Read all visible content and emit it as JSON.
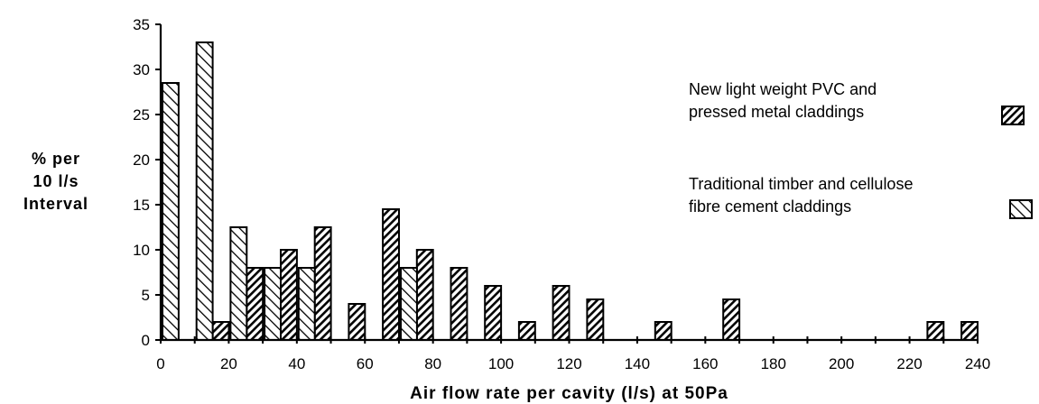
{
  "chart_data": {
    "type": "bar",
    "xlabel": "Air flow rate per cavity (l/s) at 50Pa",
    "ylabel_lines": [
      "% per",
      "10 l/s",
      "Interval"
    ],
    "xlim": [
      0,
      240
    ],
    "ylim": [
      0,
      35
    ],
    "x_ticks": [
      "0",
      "20",
      "40",
      "60",
      "80",
      "100",
      "120",
      "140",
      "160",
      "180",
      "200",
      "220",
      "240"
    ],
    "y_ticks": [
      "0",
      "5",
      "10",
      "15",
      "20",
      "25",
      "30",
      "35"
    ],
    "bin_width": 10,
    "grid": false,
    "legend_position": "right",
    "series": [
      {
        "name_lines": [
          "New light weight PVC  and",
          "pressed metal claddings"
        ],
        "hatch": "forward-diagonal-dense",
        "bins": [
          0,
          10,
          20,
          30,
          40,
          50,
          60,
          70,
          80,
          90,
          100,
          110,
          120,
          140,
          160,
          220,
          230
        ],
        "values": [
          0,
          2,
          8,
          10,
          12.5,
          4,
          14.5,
          10,
          8,
          6,
          2,
          6,
          4.5,
          2,
          4.5,
          2,
          2
        ]
      },
      {
        "name_lines": [
          "Traditional timber and cellulose",
          "fibre cement claddings"
        ],
        "hatch": "back-diagonal-sparse",
        "bins": [
          0,
          10,
          20,
          30,
          40,
          50,
          60,
          70,
          80
        ],
        "values": [
          28.5,
          33,
          12.5,
          8,
          8,
          0,
          0,
          8,
          0
        ]
      }
    ]
  }
}
